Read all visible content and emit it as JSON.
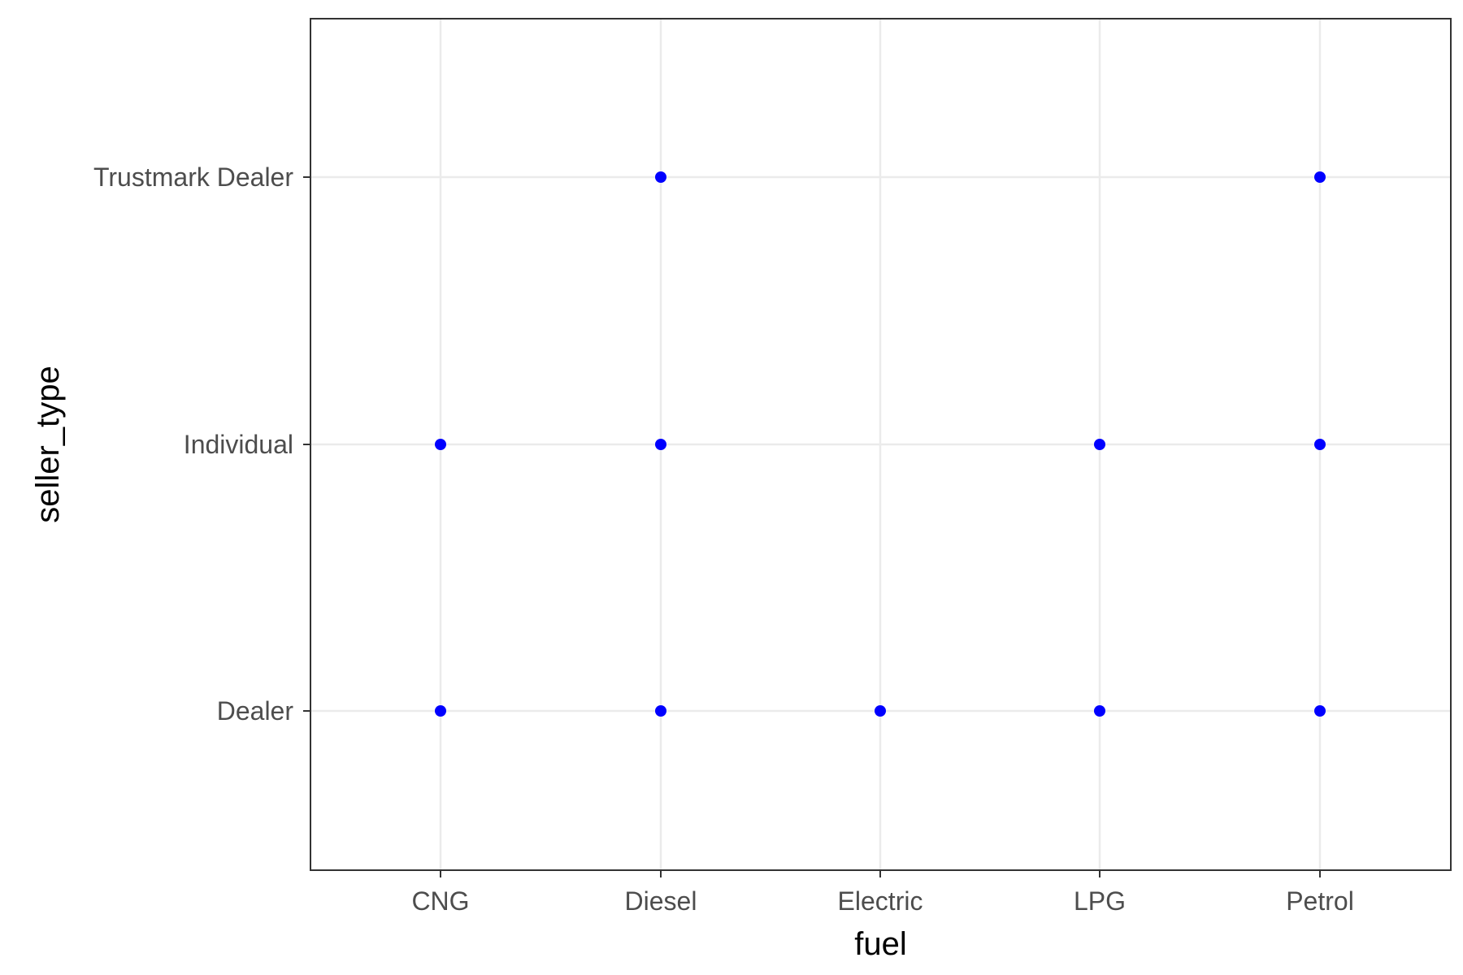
{
  "chart_data": {
    "type": "scatter",
    "xlabel": "fuel",
    "ylabel": "seller_type",
    "x_categories": [
      "CNG",
      "Diesel",
      "Electric",
      "LPG",
      "Petrol"
    ],
    "y_categories": [
      "Dealer",
      "Individual",
      "Trustmark Dealer"
    ],
    "grid": true,
    "points": [
      {
        "x": "Diesel",
        "y": "Trustmark Dealer"
      },
      {
        "x": "Petrol",
        "y": "Trustmark Dealer"
      },
      {
        "x": "CNG",
        "y": "Individual"
      },
      {
        "x": "Diesel",
        "y": "Individual"
      },
      {
        "x": "LPG",
        "y": "Individual"
      },
      {
        "x": "Petrol",
        "y": "Individual"
      },
      {
        "x": "CNG",
        "y": "Dealer"
      },
      {
        "x": "Diesel",
        "y": "Dealer"
      },
      {
        "x": "Electric",
        "y": "Dealer"
      },
      {
        "x": "LPG",
        "y": "Dealer"
      },
      {
        "x": "Petrol",
        "y": "Dealer"
      }
    ],
    "colors": {
      "point": "#0000ff",
      "grid": "#ebebeb",
      "panel_border": "#333333",
      "tick_text": "#4d4d4d",
      "title_text": "#000000"
    }
  }
}
